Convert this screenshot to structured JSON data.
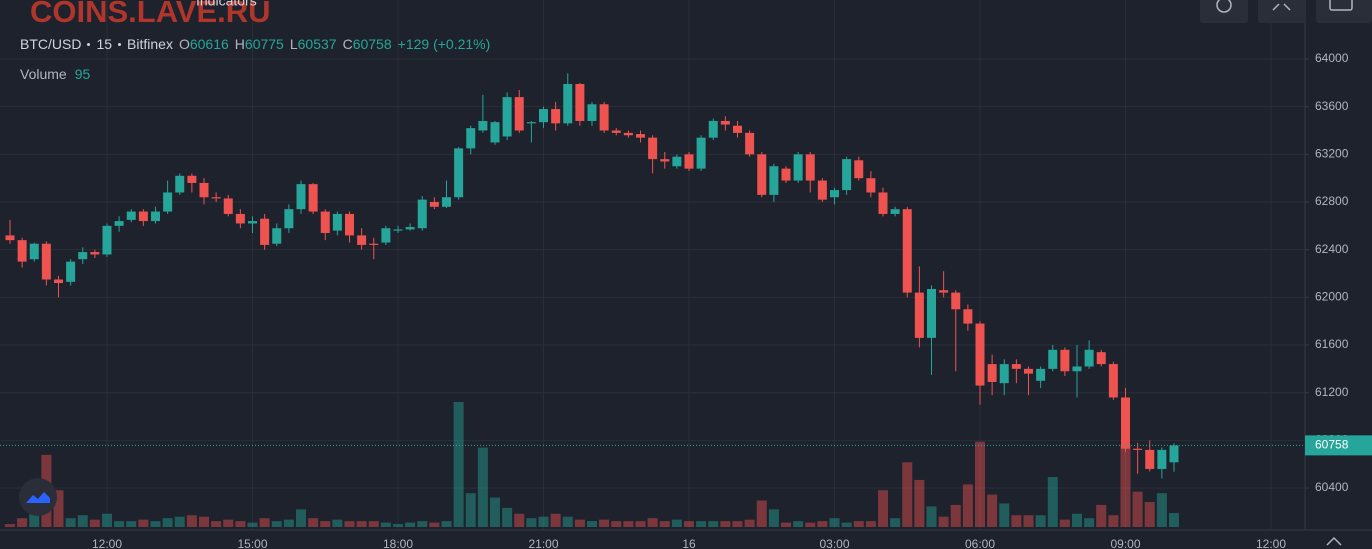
{
  "watermark": "COINS.LAVE.RU",
  "toolbar": {
    "indicators": "Indicators"
  },
  "chart_data": {
    "type": "candlestick",
    "symbol": "BTC/USD",
    "interval": "15",
    "exchange": "Bitfinex",
    "ohlc_labels": [
      "O",
      "H",
      "L",
      "C"
    ],
    "change_label": "+129 (+0.21%)",
    "volume_label": "Volume",
    "up_color": "#26a69a",
    "down_color": "#ef5350",
    "grid": true,
    "last_price_line": true,
    "ylim": [
      60048,
      64495
    ],
    "yticks": [
      60400,
      60800,
      61200,
      61600,
      62000,
      62400,
      62800,
      63200,
      63600,
      64000
    ],
    "categories": [
      null,
      null,
      null,
      null,
      null,
      null,
      null,
      null,
      "12:00",
      null,
      null,
      null,
      null,
      null,
      null,
      null,
      null,
      null,
      null,
      null,
      "15:00",
      null,
      null,
      null,
      null,
      null,
      null,
      null,
      null,
      null,
      null,
      null,
      "18:00",
      null,
      null,
      null,
      null,
      null,
      null,
      null,
      null,
      null,
      null,
      null,
      "21:00",
      null,
      null,
      null,
      null,
      null,
      null,
      null,
      null,
      null,
      null,
      null,
      "16",
      null,
      null,
      null,
      null,
      null,
      null,
      null,
      null,
      null,
      null,
      null,
      "03:00",
      null,
      null,
      null,
      null,
      null,
      null,
      null,
      null,
      null,
      null,
      null,
      "06:00",
      null,
      null,
      null,
      null,
      null,
      null,
      null,
      null,
      null,
      null,
      null,
      "09:00",
      null,
      null,
      null,
      null,
      null,
      null,
      null,
      null,
      null,
      null,
      null,
      "12:00",
      null,
      null
    ],
    "open": [
      62520,
      62480,
      62320,
      62450,
      62150,
      62130,
      62320,
      62380,
      62360,
      62600,
      62650,
      62720,
      62640,
      62720,
      62880,
      63020,
      62960,
      62840,
      62830,
      62700,
      62620,
      62660,
      62450,
      62580,
      62740,
      62950,
      62720,
      62560,
      62700,
      62520,
      62450,
      62460,
      62560,
      62570,
      62580,
      62800,
      62760,
      62840,
      63250,
      63400,
      63300,
      63350,
      63680,
      63460,
      63470,
      63580,
      63460,
      63790,
      63480,
      63620,
      63400,
      63380,
      63370,
      63340,
      63160,
      63100,
      63200,
      63080,
      63340,
      63480,
      63440,
      63380,
      63200,
      62860,
      63080,
      62980,
      63200,
      62980,
      62840,
      62900,
      63150,
      63000,
      62880,
      62700,
      62740,
      62040,
      61660,
      62060,
      62040,
      61900,
      61780,
      61440,
      61280,
      61440,
      61400,
      61300,
      61400,
      61560,
      61380,
      61420,
      61540,
      61440,
      61160,
      60730,
      60720,
      60560,
      60616,
      null,
      null,
      null,
      null,
      null,
      null,
      null,
      null,
      null,
      null
    ],
    "high": [
      62650,
      62500,
      62460,
      62470,
      62180,
      62320,
      62420,
      62400,
      62620,
      62680,
      62740,
      62740,
      62760,
      62980,
      63040,
      63040,
      63000,
      62880,
      62860,
      62740,
      62680,
      62700,
      62620,
      62780,
      62980,
      62960,
      62740,
      62720,
      62720,
      62580,
      62500,
      62600,
      62600,
      62620,
      62850,
      62840,
      62980,
      63260,
      63440,
      63700,
      63480,
      63720,
      63740,
      63480,
      63600,
      63640,
      63880,
      63800,
      63640,
      63640,
      63420,
      63400,
      63400,
      63360,
      63220,
      63200,
      63220,
      63360,
      63500,
      63520,
      63480,
      63400,
      63220,
      63120,
      63100,
      63220,
      63220,
      63000,
      62920,
      63180,
      63180,
      63060,
      62920,
      62760,
      62760,
      62260,
      62100,
      62220,
      62060,
      61940,
      61800,
      61520,
      61480,
      61480,
      61420,
      61420,
      61600,
      61580,
      61600,
      61640,
      61560,
      61460,
      61240,
      60780,
      60800,
      60740,
      60775,
      null,
      null,
      null,
      null,
      null,
      null,
      null,
      null,
      null,
      null
    ],
    "low": [
      62450,
      62250,
      62300,
      62100,
      62000,
      62100,
      62280,
      62330,
      62340,
      62550,
      62630,
      62600,
      62620,
      62700,
      62860,
      62880,
      62780,
      62800,
      62680,
      62580,
      62540,
      62400,
      62430,
      62540,
      62700,
      62700,
      62480,
      62520,
      62460,
      62400,
      62320,
      62440,
      62540,
      62560,
      62560,
      62740,
      62750,
      62820,
      63200,
      63380,
      63280,
      63320,
      63380,
      63300,
      63420,
      63400,
      63440,
      63440,
      63440,
      63380,
      63360,
      63340,
      63300,
      63040,
      63080,
      63080,
      63060,
      63060,
      63320,
      63400,
      63340,
      63180,
      62840,
      62800,
      62960,
      62960,
      62880,
      62800,
      62780,
      62860,
      62980,
      62840,
      62680,
      62680,
      62000,
      61580,
      61350,
      62000,
      61380,
      61720,
      61100,
      61180,
      61180,
      61280,
      61180,
      61240,
      61380,
      61340,
      61160,
      61400,
      61420,
      61140,
      60700,
      60520,
      60540,
      60480,
      60537,
      null,
      null,
      null,
      null,
      null,
      null,
      null,
      null,
      null,
      null
    ],
    "close": [
      62480,
      62300,
      62450,
      62150,
      62120,
      62300,
      62380,
      62360,
      62600,
      62640,
      62720,
      62640,
      62720,
      62880,
      63020,
      62960,
      62840,
      62830,
      62700,
      62620,
      62640,
      62440,
      62580,
      62740,
      62950,
      62720,
      62540,
      62700,
      62520,
      62440,
      62440,
      62580,
      62570,
      62590,
      62820,
      62760,
      62840,
      63250,
      63420,
      63480,
      63470,
      63680,
      63400,
      63470,
      63580,
      63460,
      63790,
      63480,
      63620,
      63400,
      63380,
      63360,
      63340,
      63160,
      63140,
      63180,
      63080,
      63340,
      63480,
      63450,
      63380,
      63200,
      62860,
      63100,
      62980,
      63200,
      62980,
      62820,
      62900,
      63160,
      63000,
      62880,
      62700,
      62740,
      62040,
      61660,
      62070,
      62040,
      61900,
      61780,
      61260,
      61290,
      61440,
      61400,
      61360,
      61400,
      61560,
      61380,
      61420,
      61560,
      61440,
      61160,
      60730,
      60720,
      60560,
      60720,
      60758,
      null,
      null,
      null,
      null,
      null,
      null,
      null,
      null,
      null,
      null
    ],
    "volume": [
      20,
      60,
      120,
      490,
      250,
      60,
      80,
      50,
      90,
      40,
      40,
      50,
      40,
      60,
      70,
      80,
      70,
      40,
      50,
      40,
      30,
      60,
      40,
      50,
      120,
      60,
      40,
      50,
      40,
      40,
      40,
      30,
      20,
      30,
      40,
      30,
      40,
      850,
      230,
      540,
      200,
      130,
      90,
      60,
      70,
      90,
      70,
      50,
      40,
      50,
      40,
      40,
      40,
      60,
      40,
      50,
      40,
      40,
      40,
      40,
      40,
      50,
      180,
      120,
      30,
      40,
      30,
      40,
      60,
      30,
      40,
      40,
      250,
      60,
      440,
      320,
      140,
      70,
      150,
      290,
      580,
      220,
      160,
      80,
      80,
      80,
      340,
      50,
      90,
      60,
      150,
      80,
      560,
      240,
      170,
      230,
      95,
      null,
      null,
      null,
      null,
      null,
      null,
      null,
      null,
      null,
      null
    ]
  }
}
